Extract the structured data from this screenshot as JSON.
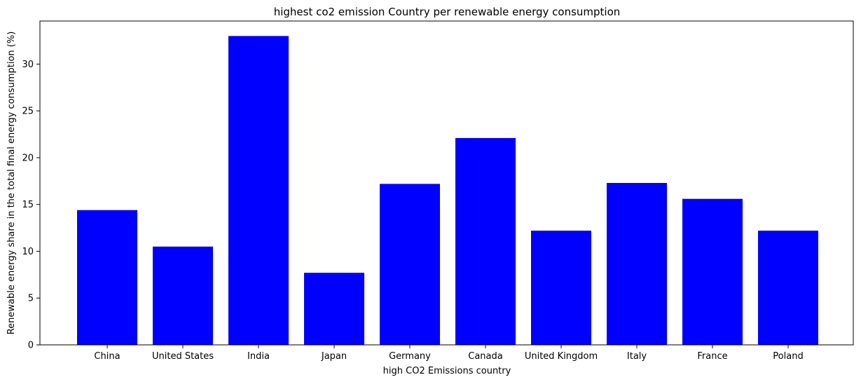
{
  "chart_data": {
    "type": "bar",
    "title": "highest co2 emission Country per renewable energy consumption",
    "xlabel": "high CO2 Emissions country",
    "ylabel": "Renewable energy share in the total final energy consumption (%)",
    "categories": [
      "China",
      "United States",
      "India",
      "Japan",
      "Germany",
      "Canada",
      "United Kingdom",
      "Italy",
      "France",
      "Poland"
    ],
    "values": [
      14.4,
      10.5,
      33.0,
      7.7,
      17.2,
      22.1,
      12.2,
      17.3,
      15.6,
      12.2
    ],
    "ylim": [
      0,
      34.6
    ],
    "yticks": [
      0,
      5,
      10,
      15,
      20,
      25,
      30
    ],
    "grid": false,
    "bar_color": "#0000ff"
  }
}
